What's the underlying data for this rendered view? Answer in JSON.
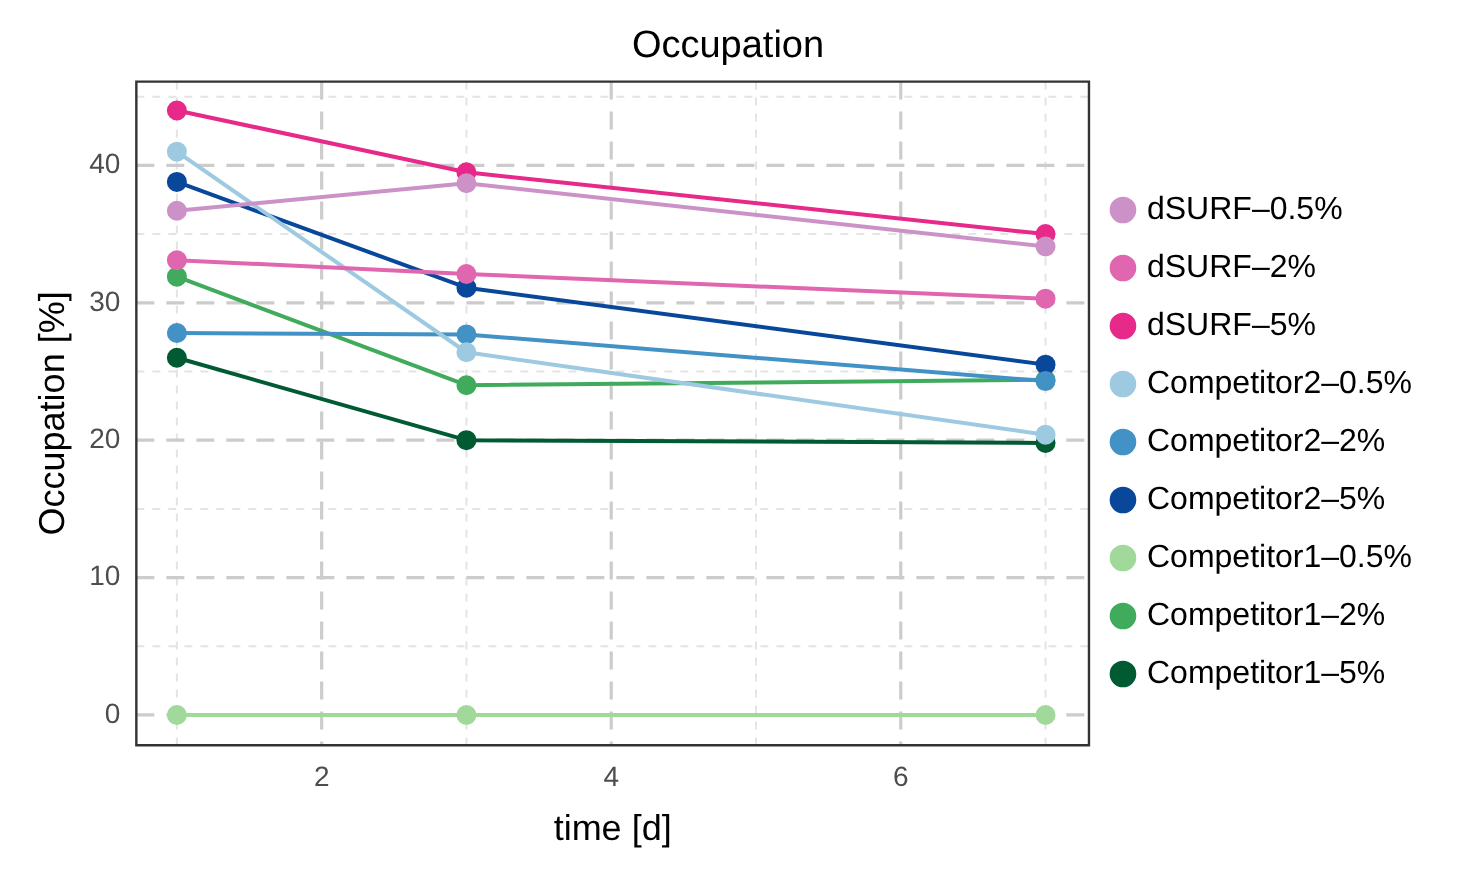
{
  "chart_data": {
    "type": "line",
    "title": "Occupation",
    "xlabel": "time [d]",
    "ylabel": "Occupation [%]",
    "x": [
      1,
      3,
      7
    ],
    "series": [
      {
        "name": "dSURF–0.5%",
        "color": "#cc92c8",
        "values": [
          36.7,
          38.7,
          34.1
        ]
      },
      {
        "name": "dSURF–2%",
        "color": "#e066b0",
        "values": [
          33.1,
          32.1,
          30.3
        ]
      },
      {
        "name": "dSURF–5%",
        "color": "#e7298a",
        "values": [
          44.0,
          39.5,
          35.0
        ]
      },
      {
        "name": "Competitor2–0.5%",
        "color": "#9ecae1",
        "values": [
          41.0,
          26.4,
          20.4
        ]
      },
      {
        "name": "Competitor2–2%",
        "color": "#4292c6",
        "values": [
          27.8,
          27.7,
          24.3
        ]
      },
      {
        "name": "Competitor2–5%",
        "color": "#08479a",
        "values": [
          38.8,
          31.1,
          25.5
        ]
      },
      {
        "name": "Competitor1–0.5%",
        "color": "#a1d99b",
        "values": [
          0,
          0,
          0
        ]
      },
      {
        "name": "Competitor1–2%",
        "color": "#41ab5d",
        "values": [
          31.9,
          24.0,
          24.4
        ]
      },
      {
        "name": "Competitor1–5%",
        "color": "#005a32",
        "values": [
          26.0,
          20.0,
          19.8
        ]
      }
    ],
    "xlim": [
      0.72,
      7.3
    ],
    "xticks": [
      2,
      4,
      6
    ],
    "ylim": [
      -2.2,
      46.1
    ],
    "yticks": [
      0,
      10,
      20,
      30,
      40
    ],
    "grid": true,
    "legend": "right",
    "marker": "circle",
    "line_style": "solid"
  }
}
